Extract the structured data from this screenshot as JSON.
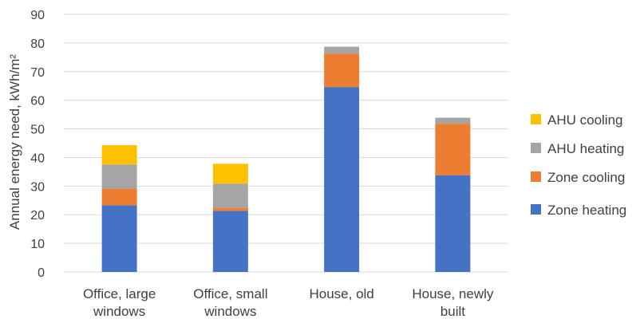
{
  "chart_data": {
    "type": "bar",
    "stacked": true,
    "title": "",
    "xlabel": "",
    "ylabel": "Annual energy need, kWh/m²",
    "ylim": [
      0,
      90
    ],
    "yticks": [
      0,
      10,
      20,
      30,
      40,
      50,
      60,
      70,
      80,
      90
    ],
    "grid": true,
    "legend_position": "right",
    "categories": [
      [
        "Office, large",
        "windows"
      ],
      [
        "Office, small",
        "windows"
      ],
      [
        "House, old"
      ],
      [
        "House, newly",
        "built"
      ]
    ],
    "series": [
      {
        "name": "Zone heating",
        "color": "#4472c4",
        "values": [
          23.3,
          21.3,
          64.6,
          33.8
        ]
      },
      {
        "name": "Zone cooling",
        "color": "#ed7d31",
        "values": [
          5.8,
          1.0,
          11.7,
          18.0
        ]
      },
      {
        "name": "AHU heating",
        "color": "#a5a5a5",
        "values": [
          8.4,
          8.5,
          2.4,
          2.1
        ]
      },
      {
        "name": "AHU cooling",
        "color": "#ffc000",
        "values": [
          6.8,
          7.0,
          0,
          0
        ]
      }
    ]
  }
}
